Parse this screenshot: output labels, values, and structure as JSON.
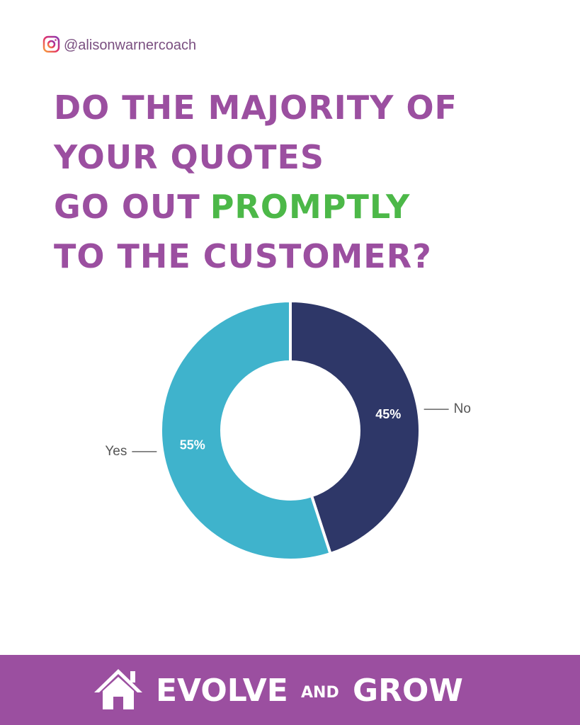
{
  "handle": "@alisonwarnercoach",
  "headline": [
    [
      "DO THE MAJORITY OF"
    ],
    [
      "YOUR QUOTES"
    ],
    [
      "GO OUT",
      "PROMPTLY"
    ],
    [
      "TO THE CUSTOMER?"
    ]
  ],
  "chart_data": {
    "type": "pie",
    "donut": true,
    "categories": [
      "No",
      "Yes"
    ],
    "values": [
      45,
      55
    ],
    "value_labels": [
      "45%",
      "55%"
    ],
    "colors": [
      "#2e3768",
      "#3fb3cc"
    ]
  },
  "footer": {
    "brand": [
      "EVOLVE",
      "AND",
      "GROW"
    ]
  }
}
